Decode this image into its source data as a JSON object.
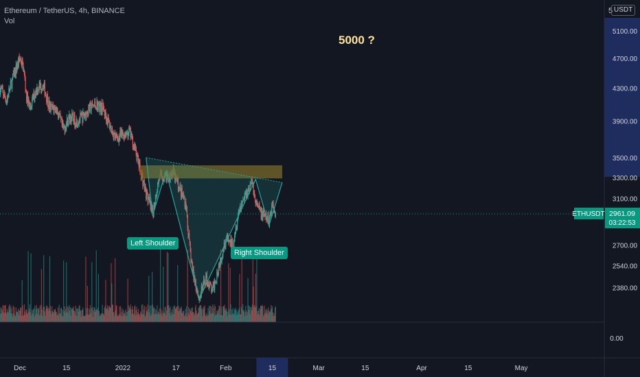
{
  "header": {
    "symbol_title": "Ethereum / TetherUS, 4h, BINANCE",
    "indicator_label": "Vol",
    "currency": "USDT",
    "scale_label": "5"
  },
  "annotation": {
    "text": "5000 ?"
  },
  "chart_data": {
    "type": "candlestick",
    "title": "Ethereum / TetherUS, 4h, BINANCE",
    "y_axis": {
      "ticks": [
        5100,
        4700,
        4300,
        3900,
        3500,
        3300,
        3100,
        2700,
        2540,
        2380
      ],
      "tick_labels": [
        "5100.00",
        "4700.00",
        "4300.00",
        "3900.00",
        "3500.00",
        "3300.00",
        "3100.00",
        "2700.00",
        "2540.00",
        "2380.00"
      ],
      "scale": "log",
      "range": [
        2200,
        5300
      ]
    },
    "volume_axis": {
      "tick_labels": [
        "0.00"
      ]
    },
    "x_axis": {
      "range": [
        "2021-11-25",
        "2022-05-26"
      ],
      "tick_labels": [
        "Dec",
        "15",
        "2022",
        "17",
        "Feb",
        "15",
        "Mar",
        "15",
        "Apr",
        "15",
        "May"
      ],
      "tick_dates": [
        "2021-12-01",
        "2021-12-15",
        "2022-01-01",
        "2022-01-17",
        "2022-02-01",
        "2022-02-15",
        "2022-03-01",
        "2022-03-15",
        "2022-04-01",
        "2022-04-15",
        "2022-05-01"
      ],
      "highlighted_label": "15"
    },
    "last_price": {
      "symbol": "ETHUSDT",
      "price": "2961.09",
      "countdown": "03:22:53"
    },
    "price_path": [
      [
        "2021-11-25",
        4300
      ],
      [
        "2021-11-27",
        4150
      ],
      [
        "2021-11-29",
        4450
      ],
      [
        "2021-12-01",
        4700
      ],
      [
        "2021-12-02",
        4580
      ],
      [
        "2021-12-03",
        4200
      ],
      [
        "2021-12-04",
        4050
      ],
      [
        "2021-12-06",
        4300
      ],
      [
        "2021-12-08",
        4350
      ],
      [
        "2021-12-10",
        4050
      ],
      [
        "2021-12-12",
        4050
      ],
      [
        "2021-12-14",
        3800
      ],
      [
        "2021-12-16",
        3950
      ],
      [
        "2021-12-18",
        3900
      ],
      [
        "2021-12-20",
        3950
      ],
      [
        "2021-12-22",
        4050
      ],
      [
        "2021-12-24",
        4100
      ],
      [
        "2021-12-26",
        4050
      ],
      [
        "2021-12-28",
        3850
      ],
      [
        "2021-12-30",
        3700
      ],
      [
        "2022-01-01",
        3750
      ],
      [
        "2022-01-03",
        3780
      ],
      [
        "2022-01-05",
        3550
      ],
      [
        "2022-01-06",
        3400
      ],
      [
        "2022-01-08",
        3150
      ],
      [
        "2022-01-10",
        2950
      ],
      [
        "2022-01-11",
        3150
      ],
      [
        "2022-01-12",
        3300
      ],
      [
        "2022-01-14",
        3300
      ],
      [
        "2022-01-16",
        3350
      ],
      [
        "2022-01-18",
        3200
      ],
      [
        "2022-01-20",
        3050
      ],
      [
        "2022-01-21",
        2700
      ],
      [
        "2022-01-22",
        2500
      ],
      [
        "2022-01-24",
        2300
      ],
      [
        "2022-01-26",
        2450
      ],
      [
        "2022-01-28",
        2350
      ],
      [
        "2022-01-30",
        2550
      ],
      [
        "2022-02-01",
        2750
      ],
      [
        "2022-02-03",
        2700
      ],
      [
        "2022-02-05",
        3000
      ],
      [
        "2022-02-07",
        3150
      ],
      [
        "2022-02-09",
        3250
      ],
      [
        "2022-02-10",
        3050
      ],
      [
        "2022-02-12",
        2950
      ],
      [
        "2022-02-14",
        2900
      ],
      [
        "2022-02-15",
        3050
      ],
      [
        "2022-02-16",
        2961.09
      ]
    ],
    "zones": [
      {
        "name": "resistance-zone",
        "from": "2022-01-08",
        "to": "2022-02-18",
        "low": 3290,
        "high": 3420,
        "color": "#7a6a2a"
      }
    ],
    "pattern": {
      "name": "head and shoulders",
      "points": [
        {
          "date": "2022-01-08",
          "price": 3500
        },
        {
          "date": "2022-01-10",
          "price": 2950
        },
        {
          "date": "2022-01-14",
          "price": 3360
        },
        {
          "date": "2022-01-24",
          "price": 2300
        },
        {
          "date": "2022-02-10",
          "price": 3280
        },
        {
          "date": "2022-02-14",
          "price": 2860
        },
        {
          "date": "2022-02-18",
          "price": 3250
        }
      ],
      "neckline": [
        {
          "date": "2022-01-08",
          "price": 3500
        },
        {
          "date": "2022-02-18",
          "price": 3250
        }
      ],
      "labels": [
        {
          "text": "Left Shoulder",
          "date": "2022-01-10"
        },
        {
          "text": "Right Shoulder",
          "date": "2022-02-14"
        }
      ],
      "fill_color": "#26a69a"
    },
    "colors": {
      "up": "#26a69a",
      "down": "#ef5350",
      "pattern": "#2e8c7e",
      "badge": "#089981",
      "annotation": "#ffe49a"
    },
    "grid": false,
    "legend": "none"
  }
}
